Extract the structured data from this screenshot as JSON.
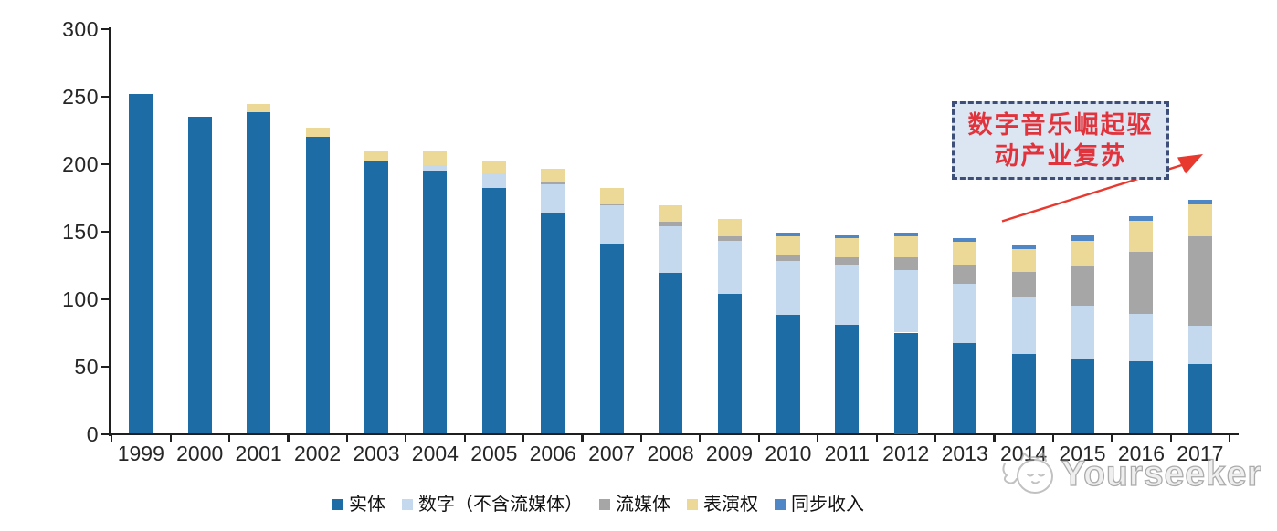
{
  "chart_data": {
    "type": "bar",
    "stacked": true,
    "title": "",
    "xlabel": "",
    "ylabel": "",
    "categories": [
      "1999",
      "2000",
      "2001",
      "2002",
      "2003",
      "2004",
      "2005",
      "2006",
      "2007",
      "2008",
      "2009",
      "2010",
      "2011",
      "2012",
      "2013",
      "2014",
      "2015",
      "2016",
      "2017"
    ],
    "series": [
      {
        "name": "实体",
        "color": "#1e6ca6",
        "values": [
          252,
          235,
          238,
          220,
          202,
          195,
          182,
          163,
          141,
          119,
          104,
          88,
          81,
          75,
          67,
          59,
          56,
          54,
          52
        ]
      },
      {
        "name": "数字（不含流媒体）",
        "color": "#c5d9ee",
        "values": [
          0,
          0,
          0,
          0,
          0,
          4,
          11,
          22,
          28,
          35,
          39,
          40,
          44,
          46,
          44,
          42,
          39,
          35,
          28
        ]
      },
      {
        "name": "流媒体",
        "color": "#a6a6a6",
        "values": [
          0,
          0,
          0,
          0,
          0,
          0,
          0,
          1,
          1,
          3,
          3,
          4,
          6,
          10,
          14,
          19,
          29,
          46,
          66
        ]
      },
      {
        "name": "表演权",
        "color": "#ecd998",
        "values": [
          0,
          0,
          6,
          7,
          8,
          10,
          9,
          10,
          12,
          12,
          13,
          14,
          14,
          15,
          17,
          17,
          19,
          23,
          24
        ]
      },
      {
        "name": "同步收入",
        "color": "#4e86c6",
        "values": [
          0,
          0,
          0,
          0,
          0,
          0,
          0,
          0,
          0,
          0,
          0,
          3,
          2,
          3,
          3,
          3,
          4,
          3,
          3
        ]
      }
    ],
    "ylim": [
      0,
      300
    ],
    "ytick_interval": 50,
    "grid": false,
    "legend_position": "bottom"
  },
  "annotation": {
    "line1": "数字音乐崛起驱",
    "line2": "动产业复苏",
    "text_color": "#e1333c",
    "box_border_color": "#3d4f79",
    "box_bg_color": "#dce6f2",
    "arrow_color": "#e8392f"
  },
  "watermark": {
    "text": "Yourseeker",
    "logo": "cat-logo-icon",
    "color": "#9e9e9e"
  }
}
